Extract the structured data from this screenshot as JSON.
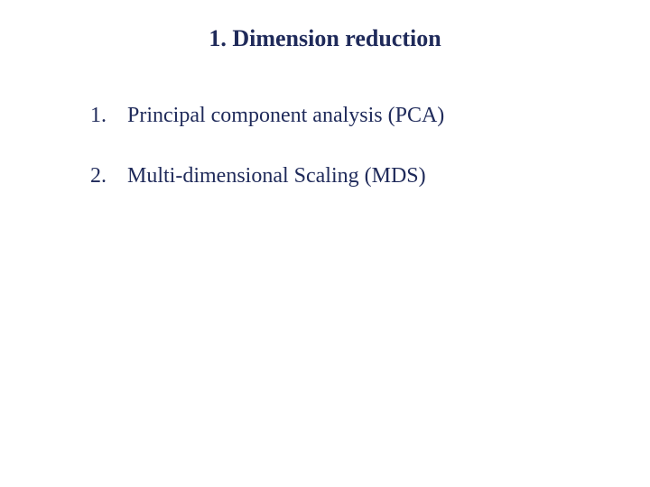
{
  "title": {
    "text": "1. Dimension reduction",
    "color": "#1f2a5a",
    "fontsize": 26
  },
  "items": [
    {
      "number": "1.",
      "text": "Principal component analysis (PCA)"
    },
    {
      "number": "2.",
      "text": "Multi-dimensional Scaling (MDS)"
    }
  ],
  "item_style": {
    "color": "#1f2a5a",
    "fontsize": 24
  },
  "background_color": "#ffffff"
}
